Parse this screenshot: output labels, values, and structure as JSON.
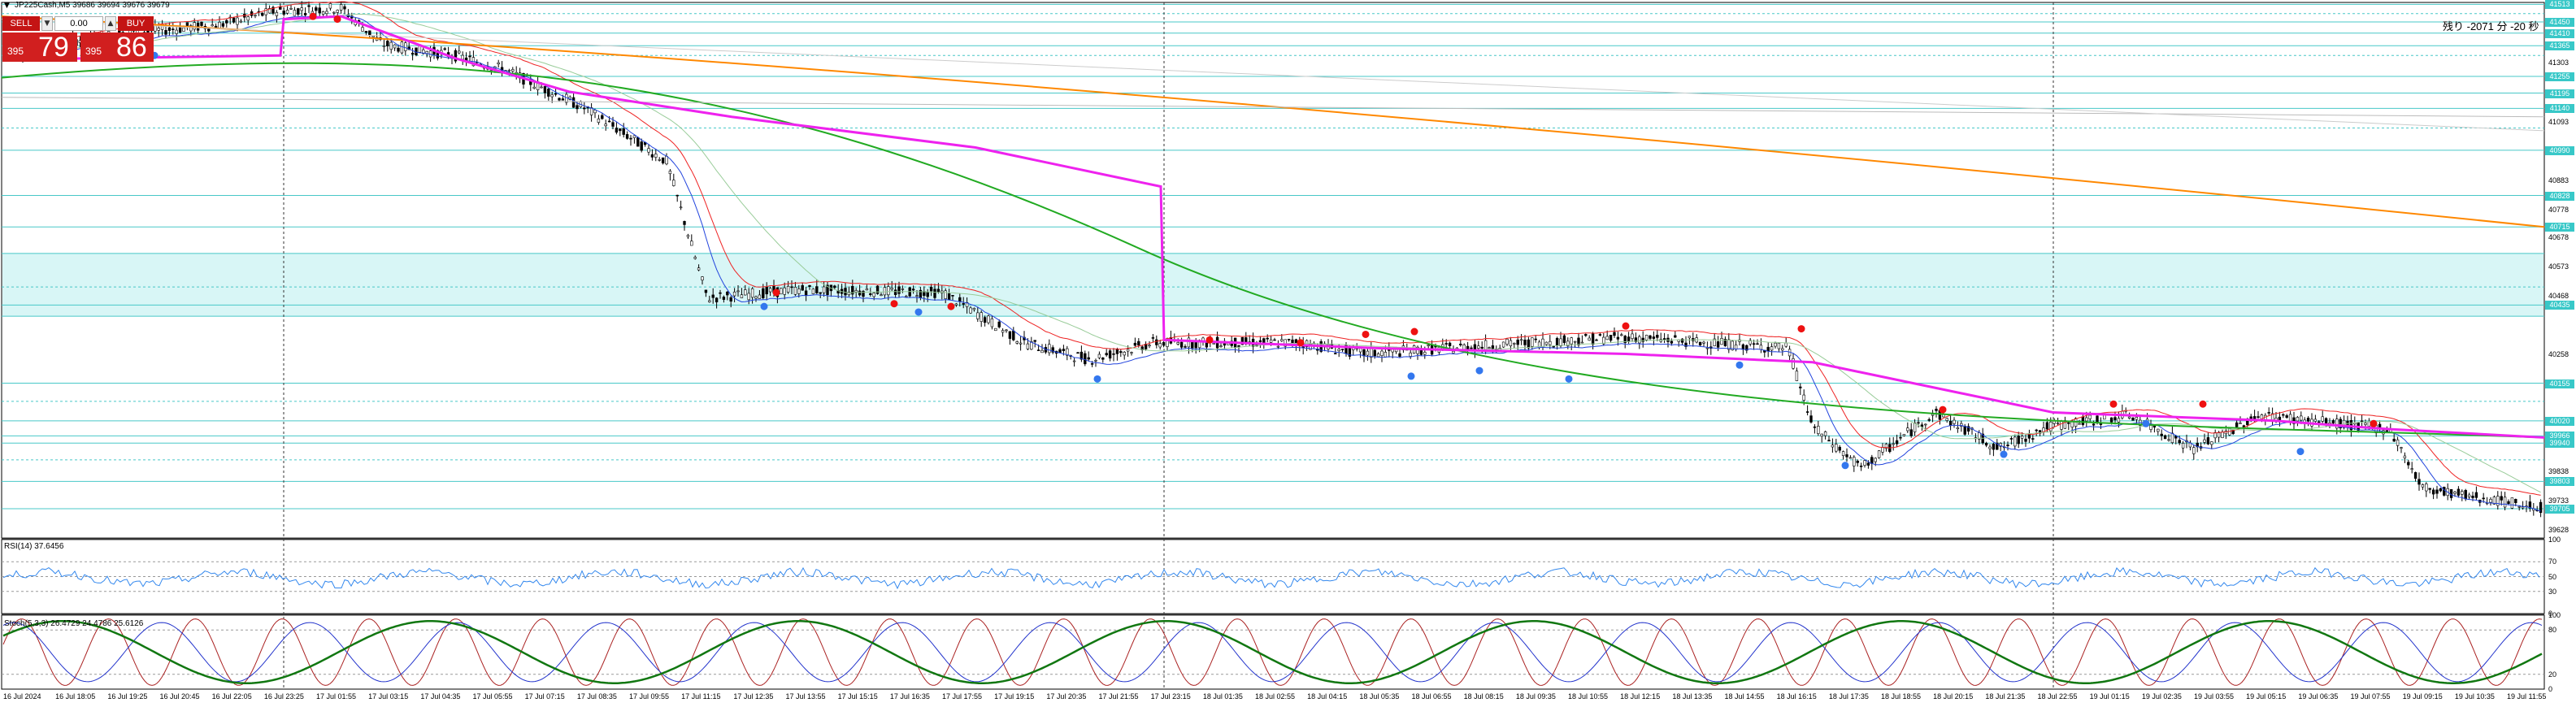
{
  "symbol": {
    "title": "JP225Cash,M5  39686 39694 39676 39679"
  },
  "trade_panel": {
    "sell_label": "SELL",
    "buy_label": "BUY",
    "volume": "0.00",
    "sell_small": "395",
    "sell_big": "79",
    "buy_small": "395",
    "buy_big": "86"
  },
  "countdown": "残り -2071 分 -20 秒",
  "indicators": {
    "rsi_label": "RSI(14) 37.6456",
    "stoch_label": "Stoch(5,3,3) 26.4729 24.4786 25.6126"
  },
  "price_axis": [
    {
      "label": "41093",
      "kind": "plain"
    },
    {
      "label": "41303",
      "kind": "plain"
    },
    {
      "label": "41198",
      "kind": "plain"
    },
    {
      "label": "40883",
      "kind": "plain"
    },
    {
      "label": "40778",
      "kind": "plain"
    },
    {
      "label": "40678",
      "kind": "plain"
    },
    {
      "label": "40573",
      "kind": "plain"
    },
    {
      "label": "40468",
      "kind": "plain"
    },
    {
      "label": "40258",
      "kind": "plain"
    },
    {
      "label": "39838",
      "kind": "plain"
    },
    {
      "label": "39733",
      "kind": "plain"
    },
    {
      "label": "39628",
      "kind": "plain"
    }
  ],
  "price_tags": [
    "41513",
    "41450",
    "41410",
    "41365",
    "41255",
    "41195",
    "41140",
    "40990",
    "40828",
    "40715",
    "40435",
    "40155",
    "40020",
    "39966",
    "39940",
    "39803",
    "39705"
  ],
  "rsi_axis": [
    "100",
    "70",
    "50",
    "30",
    "0"
  ],
  "stoch_axis": [
    "100",
    "80",
    "20",
    "0"
  ],
  "time_axis": [
    "16 Jul 2024",
    "16 Jul 18:05",
    "16 Jul 19:25",
    "16 Jul 20:45",
    "16 Jul 22:05",
    "16 Jul 23:25",
    "17 Jul 01:55",
    "17 Jul 03:15",
    "17 Jul 04:35",
    "17 Jul 05:55",
    "17 Jul 07:15",
    "17 Jul 08:35",
    "17 Jul 09:55",
    "17 Jul 11:15",
    "17 Jul 12:35",
    "17 Jul 13:55",
    "17 Jul 15:15",
    "17 Jul 16:35",
    "17 Jul 17:55",
    "17 Jul 19:15",
    "17 Jul 20:35",
    "17 Jul 21:55",
    "17 Jul 23:15",
    "18 Jul 01:35",
    "18 Jul 02:55",
    "18 Jul 04:15",
    "18 Jul 05:35",
    "18 Jul 06:55",
    "18 Jul 08:15",
    "18 Jul 09:35",
    "18 Jul 10:55",
    "18 Jul 12:15",
    "18 Jul 13:35",
    "18 Jul 14:55",
    "18 Jul 16:15",
    "18 Jul 17:35",
    "18 Jul 18:55",
    "18 Jul 20:15",
    "18 Jul 21:35",
    "18 Jul 22:55",
    "19 Jul 01:15",
    "19 Jul 02:35",
    "19 Jul 03:55",
    "19 Jul 05:15",
    "19 Jul 06:35",
    "19 Jul 07:55",
    "19 Jul 09:15",
    "19 Jul 10:35",
    "19 Jul 11:55"
  ],
  "colors": {
    "candle": "#000000",
    "zone": "#d8f6f6",
    "hline": "#48c8c8",
    "vwap": "#ee22ee",
    "ma_long": "#ff8800",
    "ma_mid": "#22aa22",
    "ma_fast_red": "#ee2222",
    "ma_fast_blue": "#2244dd",
    "rsi": "#3388ee",
    "stoch_green": "#117711",
    "stoch_red": "#aa2222",
    "stoch_blue": "#2233cc",
    "dot_red": "#ee1111",
    "dot_blue": "#3377ee",
    "tag_bg": "#38c8c8"
  }
}
